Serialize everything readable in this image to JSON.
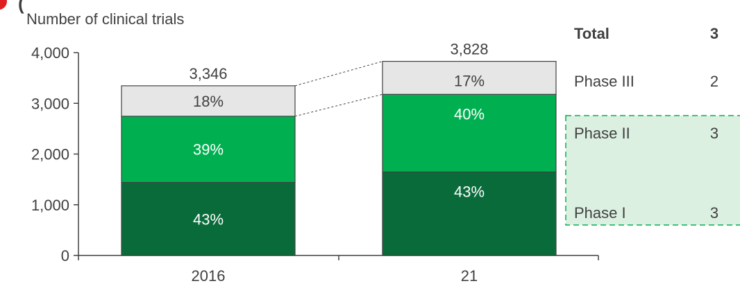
{
  "chart_data": {
    "type": "bar",
    "stacked": true,
    "ylabel": "Number of clinical trials",
    "ylim": [
      0,
      4000
    ],
    "yticks": [
      "0",
      "1,000",
      "2,000",
      "3,000",
      "4,000"
    ],
    "categories": [
      "2016",
      "21"
    ],
    "totals": [
      3346,
      3828
    ],
    "total_labels": [
      "3,346",
      "3,828"
    ],
    "series": [
      {
        "name": "Phase I",
        "values": [
          1440,
          1646
        ],
        "labels": [
          "43%",
          "43%"
        ],
        "color": "#0a6b3a"
      },
      {
        "name": "Phase II",
        "values": [
          1305,
          1531
        ],
        "labels": [
          "39%",
          "40%"
        ],
        "color": "#00b050"
      },
      {
        "name": "Phase III",
        "values": [
          601,
          651
        ],
        "labels": [
          "18%",
          "17%"
        ],
        "color": "#e6e6e6"
      }
    ],
    "grid": false,
    "highlight_color": "#dcf0e2"
  },
  "cagr_table": {
    "rows": [
      {
        "label": "Total",
        "value": "3",
        "bold": true
      },
      {
        "label": "Phase III",
        "value": "2",
        "bold": false
      },
      {
        "label": "Phase II",
        "value": "3",
        "bold": false
      },
      {
        "label": "Phase I",
        "value": "3",
        "bold": false
      }
    ]
  },
  "header_mark": "(",
  "accent_color": "#e02020"
}
